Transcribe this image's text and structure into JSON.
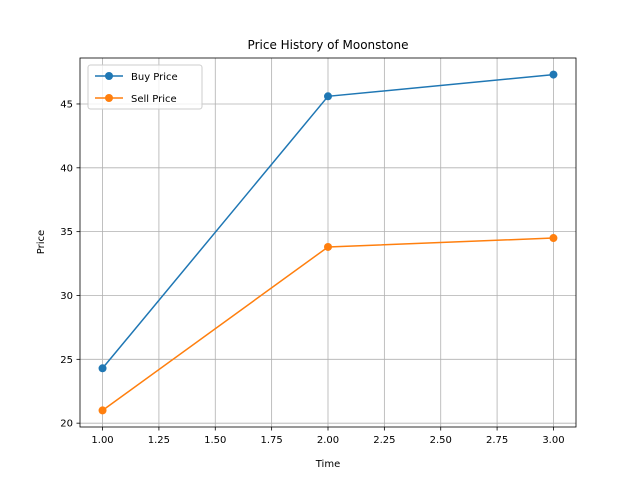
{
  "chart_data": {
    "type": "line",
    "title": "Price History of Moonstone",
    "xlabel": "Time",
    "ylabel": "Price",
    "x": [
      1,
      2,
      3
    ],
    "series": [
      {
        "name": "Buy Price",
        "values": [
          24.3,
          45.6,
          47.3
        ],
        "color": "#1f77b4"
      },
      {
        "name": "Sell Price",
        "values": [
          21.0,
          33.8,
          34.5
        ],
        "color": "#ff7f0e"
      }
    ],
    "xlim": [
      0.9,
      3.1
    ],
    "ylim": [
      19.7,
      48.6
    ],
    "xticks": [
      "1.00",
      "1.25",
      "1.50",
      "1.75",
      "2.00",
      "2.25",
      "2.50",
      "2.75",
      "3.00"
    ],
    "yticks": [
      "20",
      "25",
      "30",
      "35",
      "40",
      "45"
    ],
    "grid": true,
    "legend_position": "top-left",
    "markers": "circle"
  }
}
